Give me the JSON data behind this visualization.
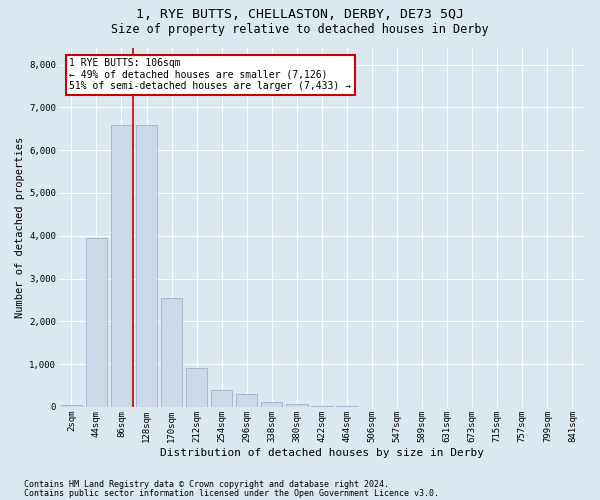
{
  "title": "1, RYE BUTTS, CHELLASTON, DERBY, DE73 5QJ",
  "subtitle": "Size of property relative to detached houses in Derby",
  "xlabel": "Distribution of detached houses by size in Derby",
  "ylabel": "Number of detached properties",
  "footnote1": "Contains HM Land Registry data © Crown copyright and database right 2024.",
  "footnote2": "Contains public sector information licensed under the Open Government Licence v3.0.",
  "bar_labels": [
    "2sqm",
    "44sqm",
    "86sqm",
    "128sqm",
    "170sqm",
    "212sqm",
    "254sqm",
    "296sqm",
    "338sqm",
    "380sqm",
    "422sqm",
    "464sqm",
    "506sqm",
    "547sqm",
    "589sqm",
    "631sqm",
    "673sqm",
    "715sqm",
    "757sqm",
    "799sqm",
    "841sqm"
  ],
  "bar_values": [
    50,
    3950,
    6600,
    6600,
    2550,
    900,
    400,
    300,
    120,
    60,
    30,
    10,
    0,
    0,
    0,
    0,
    0,
    0,
    0,
    0,
    0
  ],
  "bar_color": "#ccdae8",
  "bar_edge_color": "#9ab4cc",
  "property_line_x": 2.48,
  "property_line_color": "#cc0000",
  "annotation_text": "1 RYE BUTTS: 106sqm\n← 49% of detached houses are smaller (7,126)\n51% of semi-detached houses are larger (7,433) →",
  "annotation_box_facecolor": "#ffffff",
  "annotation_box_edgecolor": "#cc0000",
  "ylim": [
    0,
    8400
  ],
  "yticks": [
    0,
    1000,
    2000,
    3000,
    4000,
    5000,
    6000,
    7000,
    8000
  ],
  "background_color": "#dce8f0",
  "plot_bg_color": "#dce8f0",
  "title_fontsize": 9.5,
  "subtitle_fontsize": 8.5,
  "xlabel_fontsize": 8,
  "ylabel_fontsize": 7.5,
  "tick_fontsize": 6.5,
  "annot_fontsize": 7,
  "footnote_fontsize": 6
}
